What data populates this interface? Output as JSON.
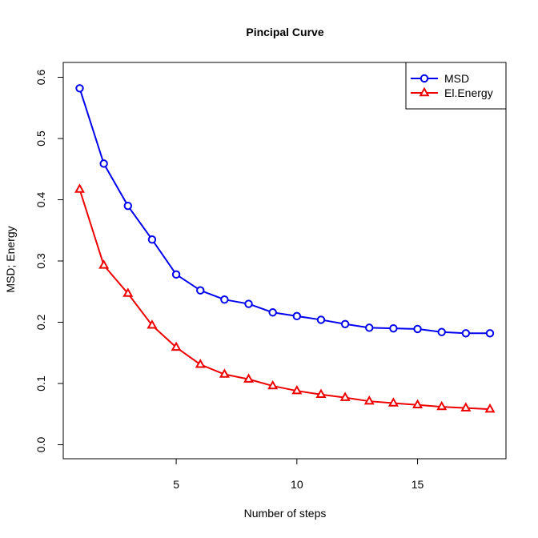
{
  "chart_data": {
    "type": "line",
    "title": "Pincipal Curve",
    "xlabel": "Number of steps",
    "ylabel": "MSD; Energy",
    "x": [
      1,
      2,
      3,
      4,
      5,
      6,
      7,
      8,
      9,
      10,
      11,
      12,
      13,
      14,
      15,
      16,
      17,
      18
    ],
    "xlim": [
      1,
      18
    ],
    "ylim": [
      0,
      0.6
    ],
    "x_ticks": [
      5,
      10,
      15
    ],
    "x_tick_labels": [
      "5",
      "10",
      "15"
    ],
    "y_ticks": [
      0.0,
      0.1,
      0.2,
      0.3,
      0.4,
      0.5,
      0.6
    ],
    "y_tick_labels": [
      "0.0",
      "0.1",
      "0.2",
      "0.3",
      "0.4",
      "0.5",
      "0.6"
    ],
    "grid": false,
    "legend_position": "top-right",
    "series": [
      {
        "name": "MSD",
        "color": "#0000ee",
        "marker": "circle",
        "values": [
          0.582,
          0.459,
          0.39,
          0.335,
          0.278,
          0.252,
          0.237,
          0.23,
          0.216,
          0.21,
          0.204,
          0.197,
          0.191,
          0.19,
          0.189,
          0.184,
          0.182,
          0.182
        ]
      },
      {
        "name": "El.Energy",
        "color": "#ee0000",
        "marker": "triangle",
        "values": [
          0.417,
          0.293,
          0.247,
          0.195,
          0.159,
          0.131,
          0.115,
          0.107,
          0.096,
          0.088,
          0.082,
          0.077,
          0.071,
          0.068,
          0.065,
          0.062,
          0.06,
          0.058
        ]
      }
    ]
  }
}
